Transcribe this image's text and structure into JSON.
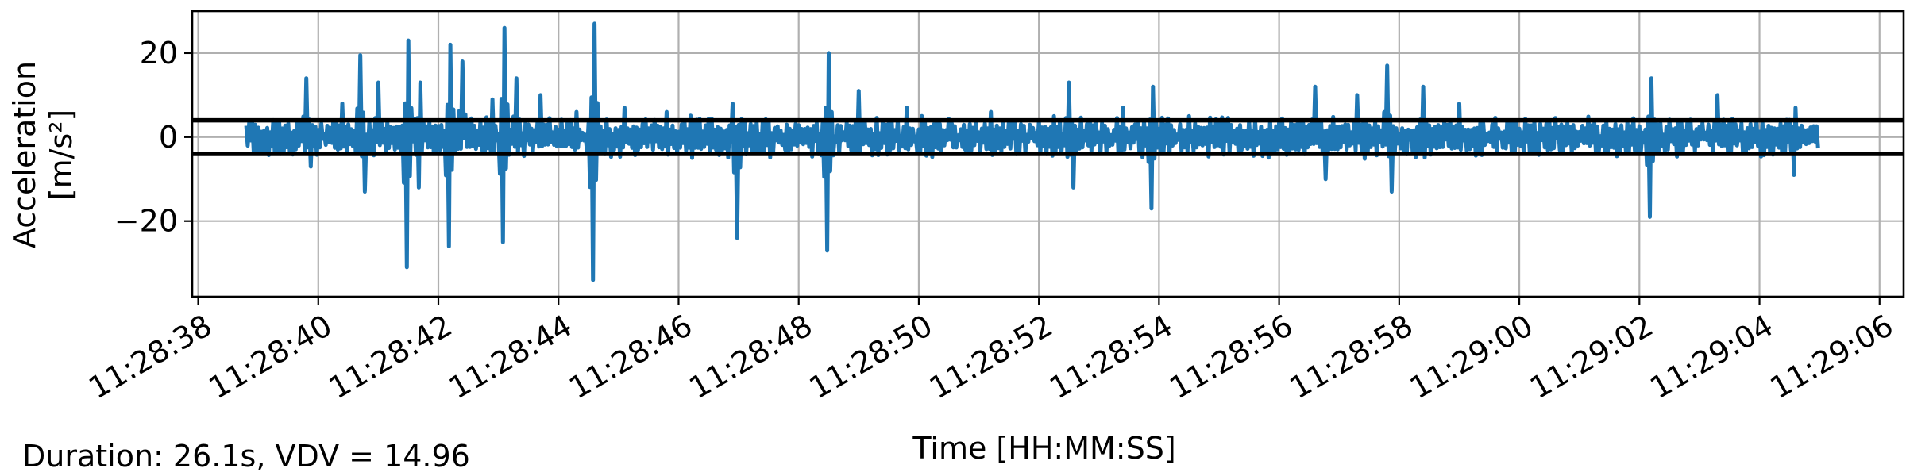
{
  "chart_data": {
    "type": "line",
    "xlabel": "Time [HH:MM:SS]",
    "ylabel_line1": "Acceleration",
    "ylabel_line2": "[m/s²]",
    "x_start": "11:28:38.8",
    "x_end": "11:29:05.0",
    "xlim": [
      "11:28:37.9",
      "11:29:06.4"
    ],
    "ylim": [
      -38,
      30
    ],
    "x_ticks": [
      "11:28:38",
      "11:28:40",
      "11:28:42",
      "11:28:44",
      "11:28:46",
      "11:28:48",
      "11:28:50",
      "11:28:52",
      "11:28:54",
      "11:28:56",
      "11:28:58",
      "11:29:00",
      "11:29:02",
      "11:29:04",
      "11:29:06"
    ],
    "y_ticks": [
      20,
      0,
      -20
    ],
    "y_tick_labels": [
      "20",
      "0",
      "−20"
    ],
    "grid": true,
    "series": [
      {
        "color": "#1f77b4",
        "peaks": [
          {
            "t": "11:28:39.8",
            "v": 14
          },
          {
            "t": "11:28:39.9",
            "v": -7
          },
          {
            "t": "11:28:40.4",
            "v": 8
          },
          {
            "t": "11:28:40.7",
            "v": 19.5
          },
          {
            "t": "11:28:40.8",
            "v": -13
          },
          {
            "t": "11:28:41.0",
            "v": 13
          },
          {
            "t": "11:28:41.5",
            "v": 23
          },
          {
            "t": "11:28:41.5",
            "v": -31
          },
          {
            "t": "11:28:41.7",
            "v": 13
          },
          {
            "t": "11:28:41.7",
            "v": -12
          },
          {
            "t": "11:28:42.2",
            "v": 22
          },
          {
            "t": "11:28:42.2",
            "v": -26
          },
          {
            "t": "11:28:42.4",
            "v": 18
          },
          {
            "t": "11:28:42.9",
            "v": 9
          },
          {
            "t": "11:28:43.1",
            "v": 26
          },
          {
            "t": "11:28:43.1",
            "v": -25
          },
          {
            "t": "11:28:43.3",
            "v": 14
          },
          {
            "t": "11:28:43.7",
            "v": 10
          },
          {
            "t": "11:28:44.3",
            "v": 6
          },
          {
            "t": "11:28:44.6",
            "v": 27
          },
          {
            "t": "11:28:44.6",
            "v": -34
          },
          {
            "t": "11:28:45.1",
            "v": 7
          },
          {
            "t": "11:28:45.8",
            "v": 6
          },
          {
            "t": "11:28:46.9",
            "v": 8
          },
          {
            "t": "11:28:47.0",
            "v": -24
          },
          {
            "t": "11:28:48.5",
            "v": 20
          },
          {
            "t": "11:28:48.5",
            "v": -27
          },
          {
            "t": "11:28:49.0",
            "v": 11
          },
          {
            "t": "11:28:49.8",
            "v": 7
          },
          {
            "t": "11:28:51.2",
            "v": 6
          },
          {
            "t": "11:28:52.5",
            "v": 13
          },
          {
            "t": "11:28:52.6",
            "v": -12
          },
          {
            "t": "11:28:53.4",
            "v": 7
          },
          {
            "t": "11:28:53.9",
            "v": 12
          },
          {
            "t": "11:28:53.9",
            "v": -17
          },
          {
            "t": "11:28:54.5",
            "v": 5
          },
          {
            "t": "11:28:55.6",
            "v": 4
          },
          {
            "t": "11:28:56.6",
            "v": 12
          },
          {
            "t": "11:28:56.8",
            "v": -10
          },
          {
            "t": "11:28:57.3",
            "v": 10
          },
          {
            "t": "11:28:57.8",
            "v": 17
          },
          {
            "t": "11:28:57.9",
            "v": -13
          },
          {
            "t": "11:28:58.4",
            "v": 12
          },
          {
            "t": "11:28:59.0",
            "v": 8
          },
          {
            "t": "11:29:02.2",
            "v": 14
          },
          {
            "t": "11:29:02.2",
            "v": -19
          },
          {
            "t": "11:29:03.3",
            "v": 10
          },
          {
            "t": "11:29:04.6",
            "v": 7
          },
          {
            "t": "11:29:04.6",
            "v": -9
          }
        ]
      }
    ],
    "reference_lines": [
      4,
      -4
    ],
    "reference_line_color": "#000000"
  },
  "annotation": {
    "text": "Duration: 26.1s, VDV = 14.96"
  }
}
